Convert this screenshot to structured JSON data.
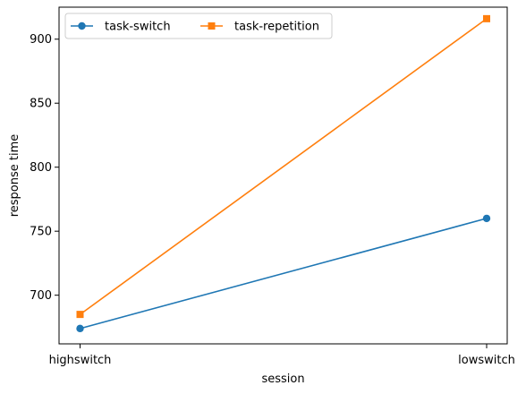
{
  "chart_data": {
    "type": "line",
    "categories": [
      "highswitch",
      "lowswitch"
    ],
    "xlabel": "session",
    "ylabel": "response time",
    "ylim": [
      662,
      925
    ],
    "yticks": [
      700,
      750,
      800,
      850,
      900
    ],
    "grid": false,
    "legend_position": "top-left",
    "series": [
      {
        "name": "task-switch",
        "values": [
          674,
          760
        ],
        "color": "#1f77b4",
        "marker": "circle"
      },
      {
        "name": "task-repetition",
        "values": [
          685,
          916
        ],
        "color": "#ff7f0e",
        "marker": "square"
      }
    ]
  }
}
